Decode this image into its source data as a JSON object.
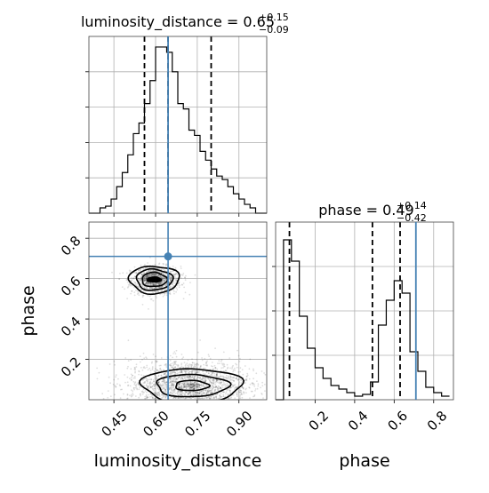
{
  "chart_data": {
    "type": "corner",
    "parameters": [
      "luminosity_distance",
      "phase"
    ],
    "truths": {
      "luminosity_distance": 0.645,
      "phase": 0.71
    },
    "truth_color": "#4682b4",
    "grid": true,
    "panels": {
      "ld_hist": {
        "type": "histogram",
        "title_name": "luminosity_distance",
        "title_value": "0.65",
        "title_plus": "+0.15",
        "title_minus": "−0.09",
        "quantiles": [
          0.56,
          0.645,
          0.8
        ],
        "xlim": [
          0.36,
          1.0
        ],
        "bins": [
          0.36,
          0.38,
          0.4,
          0.42,
          0.44,
          0.46,
          0.48,
          0.5,
          0.52,
          0.54,
          0.56,
          0.58,
          0.6,
          0.62,
          0.64,
          0.66,
          0.68,
          0.7,
          0.72,
          0.74,
          0.76,
          0.78,
          0.8,
          0.82,
          0.84,
          0.86,
          0.88,
          0.9,
          0.92,
          0.94,
          0.96,
          0.98,
          1.0
        ],
        "counts": [
          0,
          0,
          3,
          4,
          8,
          15,
          23,
          33,
          45,
          51,
          62,
          75,
          94,
          94,
          91,
          80,
          62,
          59,
          47,
          44,
          35,
          30,
          25,
          21,
          19,
          15,
          11,
          8,
          5,
          3,
          0,
          0
        ],
        "ylim": [
          0,
          100
        ],
        "ytick_values": [
          20,
          40,
          60,
          80
        ],
        "xticks": [
          0.45,
          0.6,
          0.75,
          0.9
        ]
      },
      "phase_hist": {
        "type": "histogram",
        "title_name": "phase",
        "title_value": "0.49",
        "title_plus": "+0.14",
        "title_minus": "−0.42",
        "quantiles": [
          0.07,
          0.49,
          0.63
        ],
        "xlim": [
          0.0,
          0.9
        ],
        "bins": [
          0.0,
          0.04,
          0.08,
          0.12,
          0.16,
          0.2,
          0.24,
          0.28,
          0.32,
          0.36,
          0.4,
          0.44,
          0.48,
          0.52,
          0.56,
          0.6,
          0.64,
          0.68,
          0.72,
          0.76,
          0.8,
          0.84,
          0.88
        ],
        "counts": [
          0,
          90,
          78,
          47,
          29,
          18,
          12,
          8,
          6,
          4,
          2,
          3,
          10,
          42,
          56,
          67,
          60,
          27,
          16,
          7,
          4,
          2
        ],
        "ylim": [
          0,
          100
        ],
        "ytick_values": [
          25,
          50,
          75
        ],
        "xticks": [
          0.2,
          0.4,
          0.6,
          0.8
        ]
      },
      "joint": {
        "type": "scatter-contour",
        "xlim": [
          0.36,
          1.0
        ],
        "ylim": [
          0.0,
          0.88
        ],
        "xticks": [
          0.45,
          0.6,
          0.75,
          0.9
        ],
        "yticks": [
          0.2,
          0.4,
          0.6,
          0.8
        ],
        "clusters": [
          {
            "center": [
              0.6,
              0.59
            ],
            "spread": [
              0.045,
              0.035
            ],
            "points": 900
          },
          {
            "center": [
              0.72,
              0.08
            ],
            "spread": [
              0.11,
              0.06
            ],
            "points": 1800
          }
        ],
        "contours": [
          {
            "center": [
              0.595,
              0.595
            ],
            "radii": [
              [
                0.025,
                0.012
              ],
              [
                0.045,
                0.035
              ],
              [
                0.065,
                0.052
              ],
              [
                0.09,
                0.068
              ]
            ]
          },
          {
            "center": [
              0.73,
              0.07
            ],
            "radii": [
              [
                0.06,
                0.025
              ],
              [
                0.13,
                0.055
              ],
              [
                0.18,
                0.085
              ]
            ]
          }
        ]
      }
    },
    "xlabels": {
      "ld": "luminosity_distance",
      "phase": "phase"
    },
    "ylabel": "phase",
    "tick_labels": {
      "ld": [
        "0.45",
        "0.60",
        "0.75",
        "0.90"
      ],
      "phase": [
        "0.2",
        "0.4",
        "0.6",
        "0.8"
      ]
    }
  }
}
